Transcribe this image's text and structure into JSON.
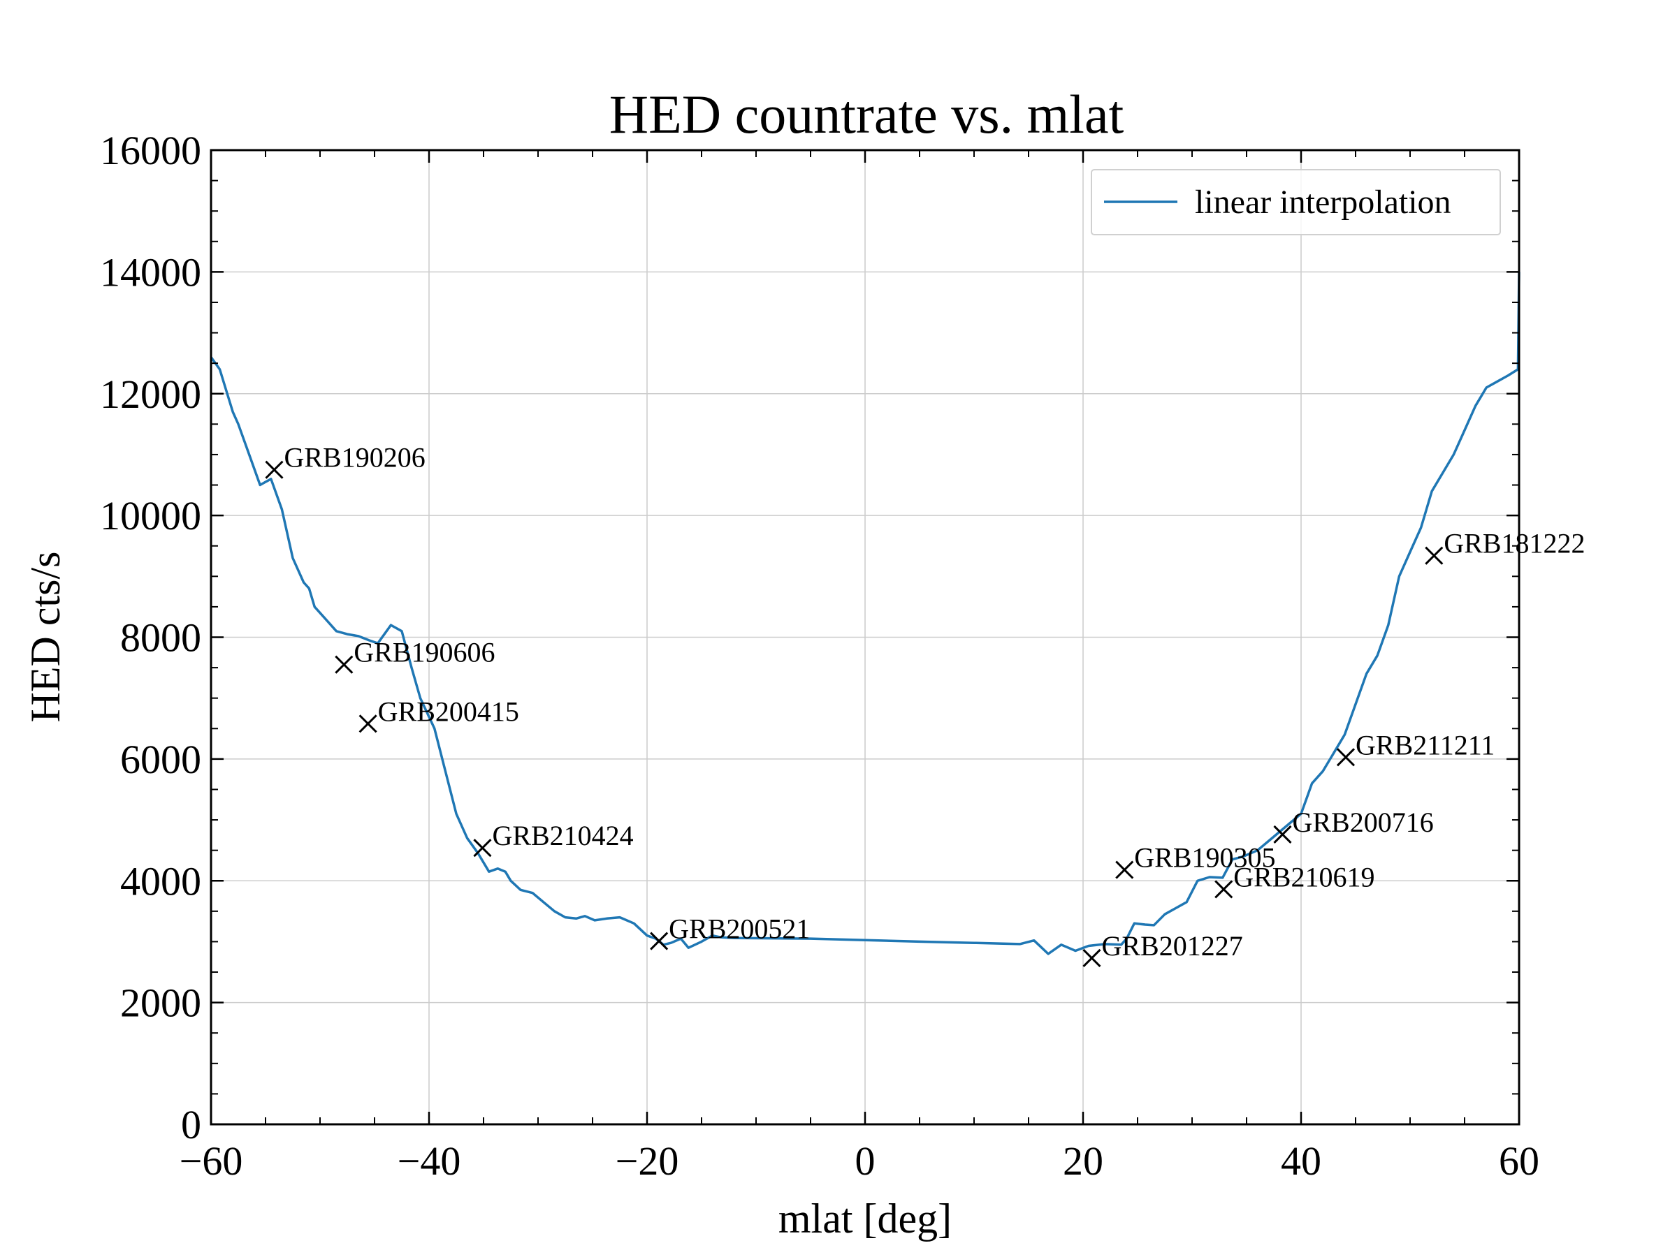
{
  "chart_data": {
    "type": "line",
    "title": "HED countrate vs. mlat",
    "xlabel": "mlat [deg]",
    "ylabel": "HED cts/s",
    "xlim": [
      -60,
      60
    ],
    "ylim": [
      0,
      16000
    ],
    "xticks": [
      -60,
      -40,
      -20,
      0,
      20,
      40,
      60
    ],
    "yticks": [
      0,
      2000,
      4000,
      6000,
      8000,
      10000,
      12000,
      14000,
      16000
    ],
    "xticklabels": [
      "−60",
      "−40",
      "−20",
      "0",
      "20",
      "40",
      "60"
    ],
    "yticklabels": [
      "0",
      "2000",
      "4000",
      "6000",
      "8000",
      "10000",
      "12000",
      "14000",
      "16000"
    ],
    "grid": true,
    "legend": {
      "position": "top-right",
      "entries": [
        "linear interpolation"
      ]
    },
    "colors": {
      "line": "#1f77b4",
      "marker": "#000000",
      "grid": "#cccccc"
    },
    "series": [
      {
        "name": "linear interpolation",
        "x": [
          -60,
          -59.2,
          -58,
          -57.5,
          -56.5,
          -55.5,
          -54.5,
          -53.5,
          -52.5,
          -51.5,
          -51,
          -50.5,
          -49.5,
          -48.5,
          -47.5,
          -46.5,
          -45.5,
          -44.7,
          -43.5,
          -42.5,
          -41.6,
          -40.8,
          -39.5,
          -38.5,
          -37.5,
          -36.5,
          -35.5,
          -34.5,
          -33.7,
          -33,
          -32.5,
          -31.6,
          -30.5,
          -29.5,
          -28.5,
          -27.5,
          -26.5,
          -25.7,
          -24.8,
          -23.7,
          -22.5,
          -21.2,
          -20,
          -19.2,
          -18.5,
          -17.8,
          -16.9,
          -16.2,
          -15,
          -14,
          -13.2,
          -12,
          -5,
          5,
          10,
          14.2,
          15.5,
          16.8,
          18,
          19.3,
          20.5,
          22,
          23.5,
          24,
          24.7,
          25.7,
          26.5,
          27.5,
          28.5,
          29.5,
          30.5,
          31.6,
          32.8,
          33.7,
          34.7,
          36,
          37,
          38,
          39,
          40,
          40.6,
          41,
          42,
          43,
          44,
          45,
          46,
          47,
          48,
          49,
          50,
          51,
          52,
          53,
          54,
          55,
          56,
          57,
          58,
          59,
          59.9,
          60
        ],
        "y": [
          12600,
          12400,
          11700,
          11500,
          11000,
          10500,
          10600,
          10100,
          9300,
          8900,
          8800,
          8500,
          8300,
          8100,
          8050,
          8020,
          7950,
          7900,
          8200,
          8100,
          7500,
          7000,
          6500,
          5800,
          5100,
          4700,
          4450,
          4150,
          4200,
          4150,
          4000,
          3850,
          3800,
          3650,
          3500,
          3400,
          3380,
          3420,
          3350,
          3380,
          3400,
          3300,
          3100,
          3050,
          2950,
          2980,
          3050,
          2900,
          3000,
          3100,
          3070,
          3060,
          3050,
          3000,
          2980,
          2960,
          3020,
          2800,
          2950,
          2850,
          2930,
          2960,
          2950,
          3050,
          3300,
          3280,
          3270,
          3450,
          3550,
          3650,
          4000,
          4060,
          4050,
          4350,
          4400,
          4500,
          4650,
          4800,
          4950,
          5100,
          5400,
          5600,
          5800,
          6100,
          6400,
          6900,
          7400,
          7700,
          8200,
          9000,
          9400,
          9800,
          10400,
          10700,
          11000,
          11400,
          11800,
          12100,
          12200,
          12300,
          12400,
          14000
        ]
      }
    ],
    "markers": [
      {
        "label": "GRB190206",
        "x": -54.2,
        "y": 10750
      },
      {
        "label": "GRB190606",
        "x": -47.8,
        "y": 7550
      },
      {
        "label": "GRB200415",
        "x": -45.6,
        "y": 6580
      },
      {
        "label": "GRB210424",
        "x": -35.1,
        "y": 4540
      },
      {
        "label": "GRB200521",
        "x": -18.9,
        "y": 3010
      },
      {
        "label": "GRB201227",
        "x": 20.8,
        "y": 2730
      },
      {
        "label": "GRB190305",
        "x": 23.8,
        "y": 4180
      },
      {
        "label": "GRB210619",
        "x": 32.9,
        "y": 3860
      },
      {
        "label": "GRB200716",
        "x": 38.3,
        "y": 4760
      },
      {
        "label": "GRB211211",
        "x": 44.1,
        "y": 6030
      },
      {
        "label": "GRB181222",
        "x": 52.2,
        "y": 9340
      }
    ]
  }
}
